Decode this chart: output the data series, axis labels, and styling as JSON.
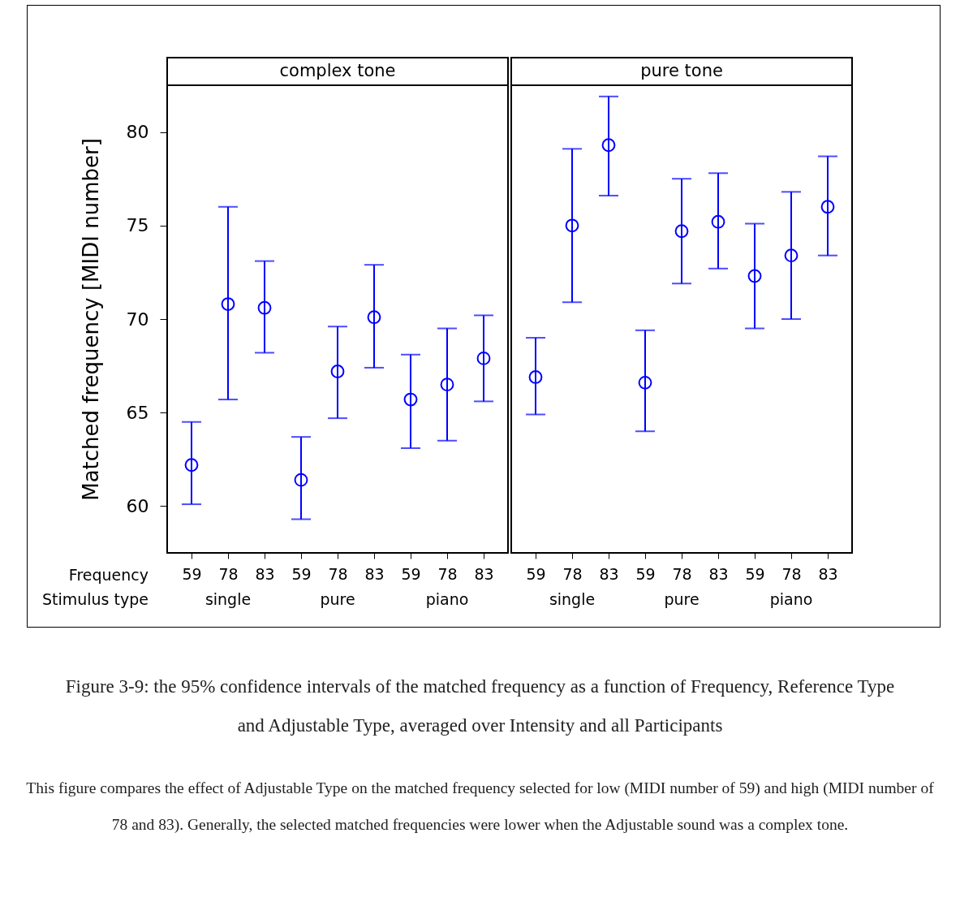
{
  "chart_data": [
    {
      "type": "scatter",
      "title": "complex tone",
      "ylabel": "Matched frequency [MIDI number]",
      "categories": [
        "59",
        "78",
        "83",
        "59",
        "78",
        "83",
        "59",
        "78",
        "83"
      ],
      "values": [
        62.2,
        70.8,
        70.6,
        61.4,
        67.2,
        70.1,
        65.7,
        66.5,
        67.9
      ],
      "errors": [
        [
          60.1,
          64.5
        ],
        [
          65.7,
          76.0
        ],
        [
          68.2,
          73.1
        ],
        [
          59.3,
          63.7
        ],
        [
          64.7,
          69.6
        ],
        [
          67.4,
          72.9
        ],
        [
          63.1,
          68.1
        ],
        [
          63.5,
          69.5
        ],
        [
          65.6,
          70.2
        ]
      ],
      "color": "#0000ff",
      "marker": "circle",
      "ylim": [
        57.5,
        82.5
      ],
      "yticks": [
        60,
        65,
        70,
        75,
        80
      ],
      "grid": false,
      "annotations": [
        "Frequency",
        "Stimulus type",
        "single",
        "pure",
        "piano"
      ]
    },
    {
      "type": "scatter",
      "title": "pure tone",
      "categories": [
        "59",
        "78",
        "83",
        "59",
        "78",
        "83",
        "59",
        "78",
        "83"
      ],
      "values": [
        66.9,
        75.0,
        79.3,
        66.6,
        74.7,
        75.2,
        72.3,
        73.4,
        76.0
      ],
      "errors": [
        [
          64.9,
          69.0
        ],
        [
          70.9,
          79.1
        ],
        [
          76.6,
          81.9
        ],
        [
          64.0,
          69.4
        ],
        [
          71.9,
          77.5
        ],
        [
          72.7,
          77.8
        ],
        [
          69.5,
          75.1
        ],
        [
          70.0,
          76.8
        ],
        [
          73.4,
          78.7
        ]
      ],
      "color": "#0000ff",
      "marker": "circle",
      "ylim": [
        57.5,
        82.5
      ],
      "yticks": [
        60,
        65,
        70,
        75,
        80
      ],
      "grid": false,
      "tick_labels": "x",
      "annotations": [
        "single",
        "pure",
        "piano"
      ]
    },
    {
      "type": "other",
      "annotations": [
        "Figure 3-9: the 95% confidence intervals of the matched frequency as a function of Frequency, Reference Type and Adjustable Type, averaged over Intensity and all Participants",
        "This figure compares the effect of Adjustable Type on the matched frequency selected for low (MIDI number of 59) and high (MIDI number of 78 and 83). Generally, the selected matched frequencies were lower when the Adjustable sound was a complex tone."
      ]
    }
  ]
}
